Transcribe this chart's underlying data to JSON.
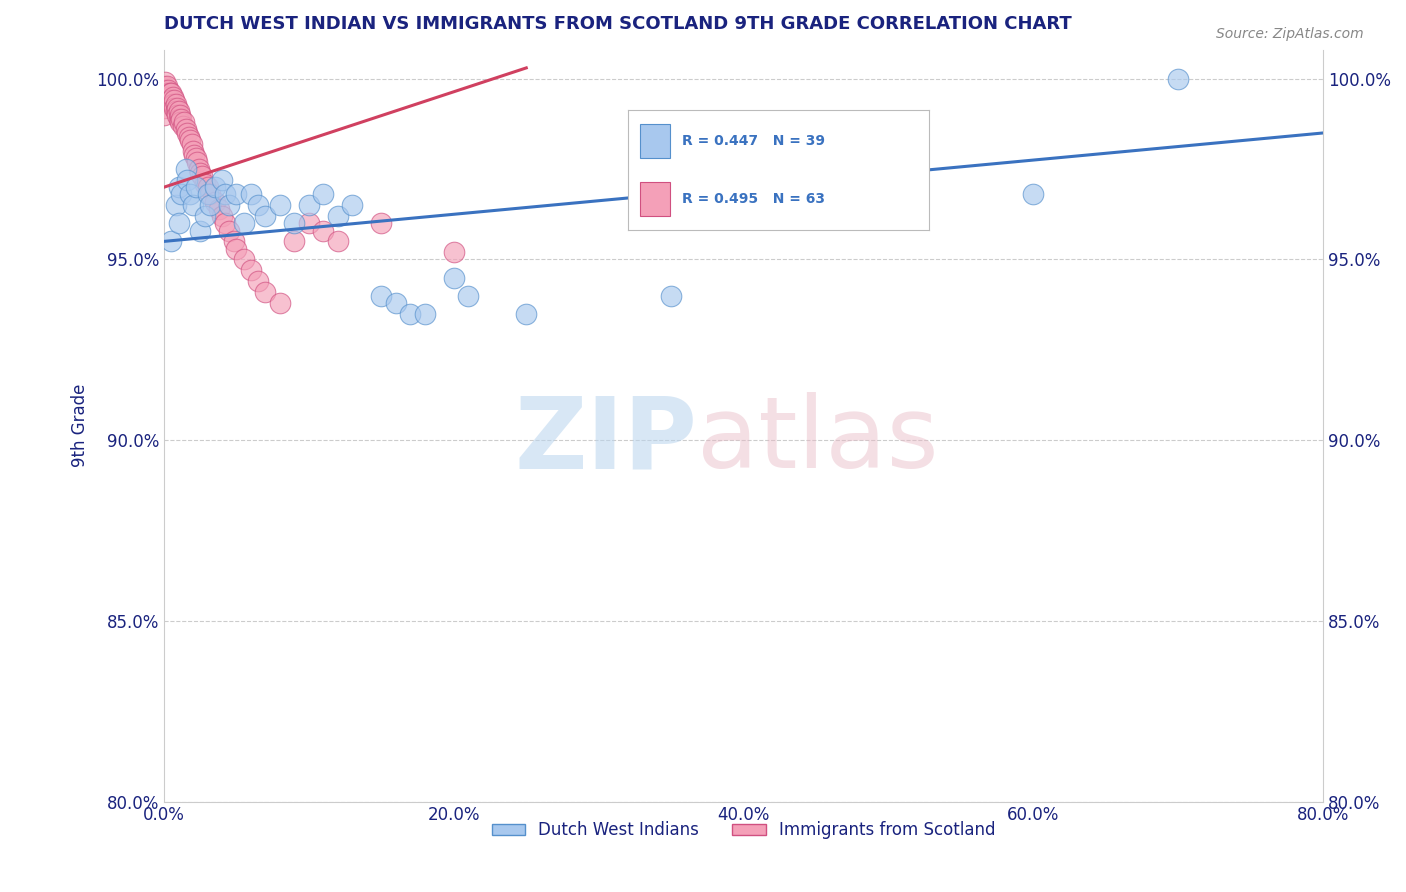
{
  "title": "DUTCH WEST INDIAN VS IMMIGRANTS FROM SCOTLAND 9TH GRADE CORRELATION CHART",
  "source": "Source: ZipAtlas.com",
  "ylabel": "9th Grade",
  "xmin": 0.0,
  "xmax": 0.8,
  "ymin": 0.8,
  "ymax": 1.008,
  "xtick_labels": [
    "0.0%",
    "20.0%",
    "40.0%",
    "60.0%",
    "80.0%"
  ],
  "xtick_values": [
    0.0,
    0.2,
    0.4,
    0.6,
    0.8
  ],
  "ytick_labels": [
    "80.0%",
    "85.0%",
    "90.0%",
    "95.0%",
    "100.0%"
  ],
  "ytick_values": [
    0.8,
    0.85,
    0.9,
    0.95,
    1.0
  ],
  "blue_series_label": "Dutch West Indians",
  "pink_series_label": "Immigrants from Scotland",
  "blue_R": 0.447,
  "blue_N": 39,
  "pink_R": 0.495,
  "pink_N": 63,
  "blue_color": "#A8C8EE",
  "pink_color": "#F4A0B8",
  "blue_edge_color": "#5590CC",
  "pink_edge_color": "#D05080",
  "blue_line_color": "#3A72C0",
  "pink_line_color": "#D04060",
  "legend_text_color": "#3A72C0",
  "title_color": "#1A237E",
  "axis_tick_color": "#1A237E",
  "blue_x": [
    0.005,
    0.008,
    0.01,
    0.01,
    0.012,
    0.015,
    0.016,
    0.018,
    0.02,
    0.022,
    0.025,
    0.028,
    0.03,
    0.032,
    0.035,
    0.04,
    0.042,
    0.045,
    0.05,
    0.055,
    0.06,
    0.065,
    0.07,
    0.08,
    0.09,
    0.1,
    0.11,
    0.12,
    0.13,
    0.15,
    0.16,
    0.17,
    0.18,
    0.2,
    0.21,
    0.25,
    0.35,
    0.6,
    0.7
  ],
  "blue_y": [
    0.955,
    0.965,
    0.97,
    0.96,
    0.968,
    0.975,
    0.972,
    0.968,
    0.965,
    0.97,
    0.958,
    0.962,
    0.968,
    0.965,
    0.97,
    0.972,
    0.968,
    0.965,
    0.968,
    0.96,
    0.968,
    0.965,
    0.962,
    0.965,
    0.96,
    0.965,
    0.968,
    0.962,
    0.965,
    0.94,
    0.938,
    0.935,
    0.935,
    0.945,
    0.94,
    0.935,
    0.94,
    0.968,
    1.0
  ],
  "pink_x": [
    0.0,
    0.0,
    0.0,
    0.0,
    0.0,
    0.001,
    0.001,
    0.002,
    0.002,
    0.003,
    0.003,
    0.004,
    0.004,
    0.005,
    0.005,
    0.006,
    0.006,
    0.007,
    0.007,
    0.008,
    0.008,
    0.009,
    0.009,
    0.01,
    0.01,
    0.011,
    0.011,
    0.012,
    0.013,
    0.014,
    0.015,
    0.016,
    0.017,
    0.018,
    0.019,
    0.02,
    0.021,
    0.022,
    0.023,
    0.024,
    0.025,
    0.026,
    0.028,
    0.03,
    0.032,
    0.035,
    0.038,
    0.04,
    0.042,
    0.045,
    0.048,
    0.05,
    0.055,
    0.06,
    0.065,
    0.07,
    0.08,
    0.09,
    0.1,
    0.11,
    0.12,
    0.15,
    0.2
  ],
  "pink_y": [
    0.998,
    0.996,
    0.994,
    0.992,
    0.99,
    0.999,
    0.997,
    0.998,
    0.996,
    0.997,
    0.995,
    0.996,
    0.994,
    0.996,
    0.994,
    0.995,
    0.993,
    0.994,
    0.992,
    0.993,
    0.991,
    0.992,
    0.99,
    0.991,
    0.989,
    0.99,
    0.988,
    0.989,
    0.987,
    0.988,
    0.986,
    0.985,
    0.984,
    0.983,
    0.982,
    0.98,
    0.979,
    0.978,
    0.977,
    0.975,
    0.974,
    0.973,
    0.971,
    0.97,
    0.968,
    0.966,
    0.964,
    0.962,
    0.96,
    0.958,
    0.955,
    0.953,
    0.95,
    0.947,
    0.944,
    0.941,
    0.938,
    0.955,
    0.96,
    0.958,
    0.955,
    0.96,
    0.952
  ],
  "blue_trendline_x": [
    0.0,
    0.8
  ],
  "blue_trendline_y": [
    0.955,
    0.985
  ],
  "pink_trendline_x": [
    0.0,
    0.25
  ],
  "pink_trendline_y": [
    0.97,
    1.003
  ]
}
